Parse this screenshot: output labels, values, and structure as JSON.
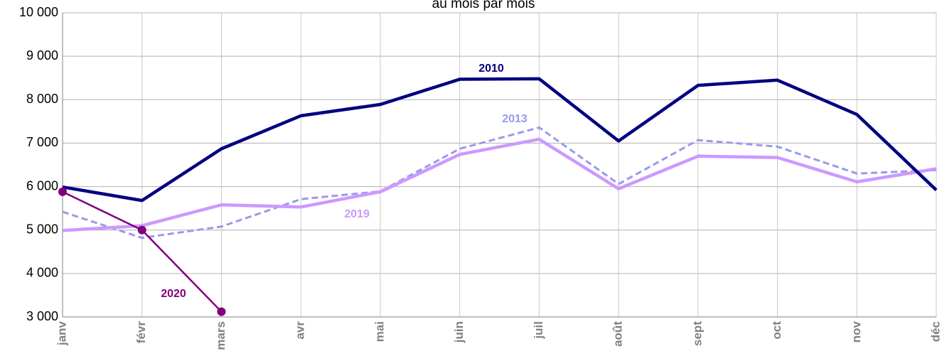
{
  "chart_data": {
    "type": "line",
    "title": "au mois par mois",
    "categories": [
      "janv",
      "févr",
      "mars",
      "avr",
      "mai",
      "juin",
      "juil",
      "août",
      "sept",
      "oct",
      "nov",
      "déc"
    ],
    "series": [
      {
        "name": "2010",
        "color": "#000080",
        "values": [
          5990,
          5680,
          6870,
          7630,
          7890,
          8470,
          8480,
          7050,
          8330,
          8450,
          7660,
          5920
        ]
      },
      {
        "name": "2013",
        "color": "#9999ee",
        "dashed": true,
        "values": [
          5420,
          4820,
          5080,
          5710,
          5890,
          6870,
          7360,
          6060,
          7070,
          6920,
          6300,
          6380
        ]
      },
      {
        "name": "2019",
        "color": "#cc99ff",
        "values": [
          4990,
          5100,
          5580,
          5530,
          5880,
          6740,
          7090,
          5950,
          6700,
          6670,
          6110,
          6410
        ]
      },
      {
        "name": "2020",
        "color": "#800080",
        "markers": true,
        "values": [
          5880,
          5000,
          3120,
          null,
          null,
          null,
          null,
          null,
          null,
          null,
          null,
          null
        ]
      }
    ],
    "ylim": [
      3000,
      10000
    ],
    "yticks": [
      {
        "value": 3000,
        "label": "3 000"
      },
      {
        "value": 4000,
        "label": "4 000"
      },
      {
        "value": 5000,
        "label": "5 000"
      },
      {
        "value": 6000,
        "label": "6 000"
      },
      {
        "value": 7000,
        "label": "7 000"
      },
      {
        "value": 8000,
        "label": "8 000"
      },
      {
        "value": 9000,
        "label": "9 000"
      },
      {
        "value": 10000,
        "label": "10 000"
      }
    ],
    "grid": true
  }
}
